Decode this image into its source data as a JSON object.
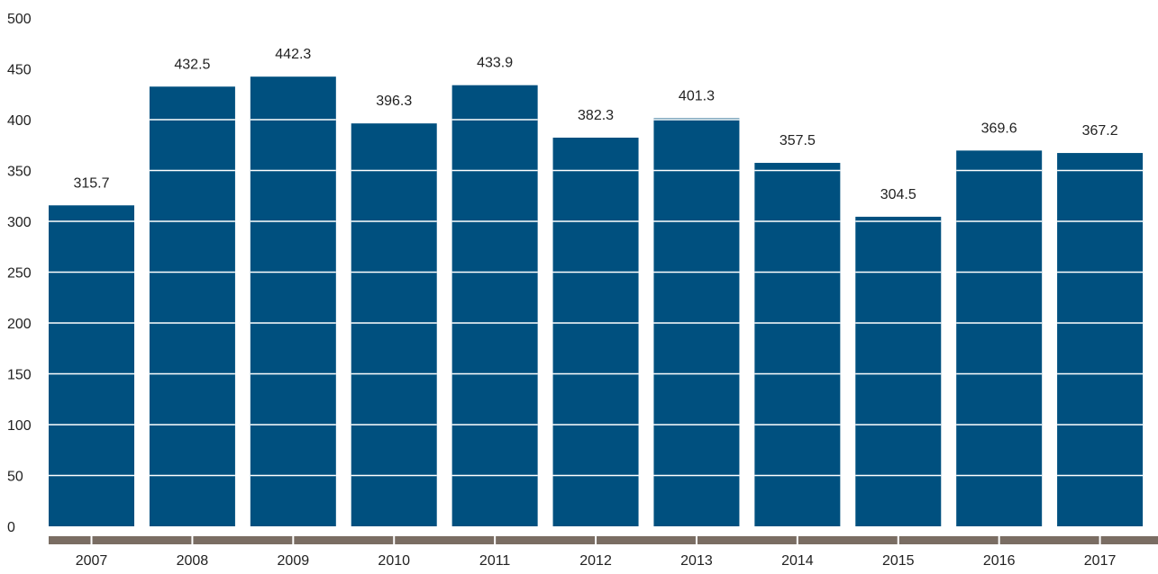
{
  "chart_data": {
    "type": "bar",
    "categories": [
      "2007",
      "2008",
      "2009",
      "2010",
      "2011",
      "2012",
      "2013",
      "2014",
      "2015",
      "2016",
      "2017"
    ],
    "values": [
      315.7,
      432.5,
      442.3,
      396.3,
      433.9,
      382.3,
      401.3,
      357.5,
      304.5,
      369.6,
      367.2
    ],
    "data_labels": [
      "315.7",
      "432.5",
      "442.3",
      "396.3",
      "433.9",
      "382.3",
      "401.3",
      "357.5",
      "304.5",
      "369.6",
      "367.2"
    ],
    "y_ticks": [
      0,
      50,
      100,
      150,
      200,
      250,
      300,
      350,
      400,
      450,
      500
    ],
    "ylim": [
      0,
      500
    ],
    "title": "",
    "xlabel": "",
    "ylabel": "",
    "grid": "horizontal white lines across bars",
    "legend": "none",
    "colors": {
      "bar": "#00507f",
      "axis": "#7a6d63",
      "gridline": "#ffffff",
      "text": "#222222"
    }
  }
}
